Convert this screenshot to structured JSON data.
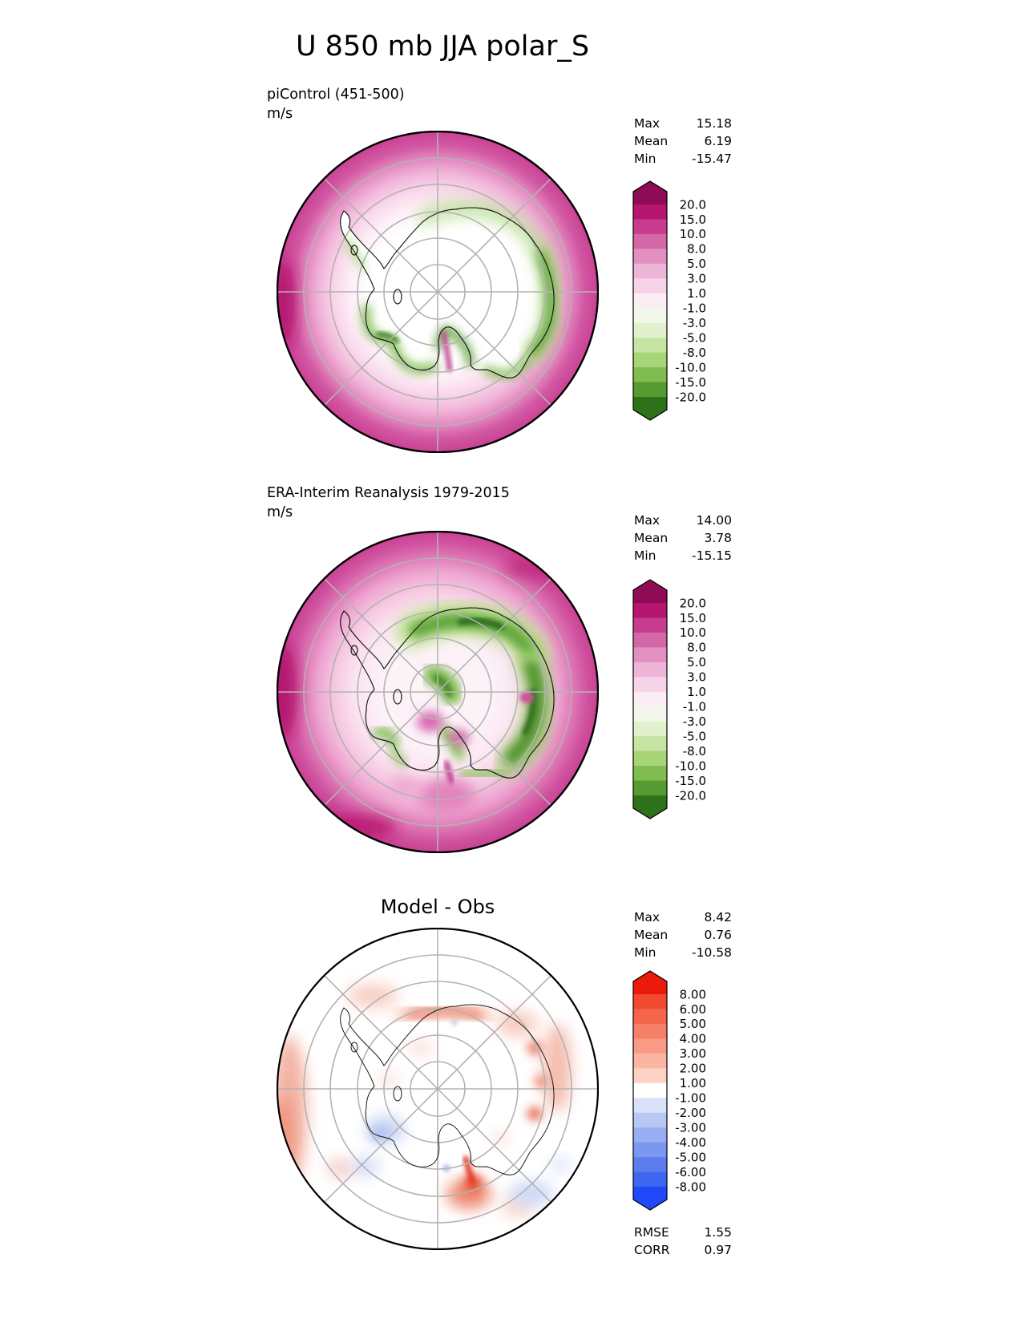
{
  "page_title": "U 850 mb JJA polar_S",
  "panels": [
    {
      "id": "model",
      "label": "piControl (451-500)",
      "units": "m/s",
      "stats": [
        {
          "label": "Max",
          "value": "15.18"
        },
        {
          "label": "Mean",
          "value": "6.19"
        },
        {
          "label": "Min",
          "value": "-15.47"
        }
      ],
      "colorbar": {
        "ticks": [
          "20.0",
          "15.0",
          "10.0",
          "8.0",
          "5.0",
          "3.0",
          "1.0",
          "-1.0",
          "-3.0",
          "-5.0",
          "-8.0",
          "-10.0",
          "-15.0",
          "-20.0"
        ],
        "colors": [
          "#8e0c56",
          "#b51670",
          "#c73c8c",
          "#d467a5",
          "#e190bf",
          "#edb5d6",
          "#f6d3e7",
          "#faeef4",
          "#f3f7eb",
          "#e2f1cd",
          "#c6e5a2",
          "#a6d578",
          "#7fbd50",
          "#569b31",
          "#2d7119"
        ]
      }
    },
    {
      "id": "obs",
      "label": "ERA-Interim Reanalysis 1979-2015",
      "units": "m/s",
      "stats": [
        {
          "label": "Max",
          "value": "14.00"
        },
        {
          "label": "Mean",
          "value": "3.78"
        },
        {
          "label": "Min",
          "value": "-15.15"
        }
      ],
      "colorbar": {
        "ticks": [
          "20.0",
          "15.0",
          "10.0",
          "8.0",
          "5.0",
          "3.0",
          "1.0",
          "-1.0",
          "-3.0",
          "-5.0",
          "-8.0",
          "-10.0",
          "-15.0",
          "-20.0"
        ],
        "colors": [
          "#8e0c56",
          "#b51670",
          "#c73c8c",
          "#d467a5",
          "#e190bf",
          "#edb5d6",
          "#f6d3e7",
          "#faeef4",
          "#f3f7eb",
          "#e2f1cd",
          "#c6e5a2",
          "#a6d578",
          "#7fbd50",
          "#569b31",
          "#2d7119"
        ]
      }
    },
    {
      "id": "diff",
      "title": "Model - Obs",
      "stats": [
        {
          "label": "Max",
          "value": "8.42"
        },
        {
          "label": "Mean",
          "value": "0.76"
        },
        {
          "label": "Min",
          "value": "-10.58"
        }
      ],
      "colorbar": {
        "ticks": [
          "8.00",
          "6.00",
          "5.00",
          "4.00",
          "3.00",
          "2.00",
          "1.00",
          "-1.00",
          "-2.00",
          "-3.00",
          "-4.00",
          "-5.00",
          "-6.00",
          "-8.00"
        ],
        "colors": [
          "#eb1a0b",
          "#f14a31",
          "#f4654c",
          "#f67f68",
          "#f99a85",
          "#fbb5a3",
          "#fdd2c4",
          "#ffffff",
          "#dae2f9",
          "#b9c7f5",
          "#98adf2",
          "#7b97ef",
          "#5d7dec",
          "#3f66f0",
          "#2149fb"
        ]
      },
      "metrics": [
        {
          "label": "RMSE",
          "value": "1.55"
        },
        {
          "label": "CORR",
          "value": "0.97"
        }
      ]
    }
  ],
  "chart_data": [
    {
      "type": "heatmap",
      "title": "piControl (451-500)",
      "suptitle": "U 850 mb JJA polar_S",
      "variable": "U 850 mb",
      "season": "JJA",
      "region": "polar_S",
      "projection": "south-polar-stereographic",
      "units": "m/s",
      "stats": {
        "max": 15.18,
        "mean": 6.19,
        "min": -15.47
      },
      "contour_levels": [
        -20,
        -15,
        -10,
        -8,
        -5,
        -3,
        -1,
        1,
        3,
        5,
        8,
        10,
        15,
        20
      ],
      "colormap": "PiYG_r",
      "legend_position": "right"
    },
    {
      "type": "heatmap",
      "title": "ERA-Interim Reanalysis 1979-2015",
      "variable": "U 850 mb",
      "season": "JJA",
      "region": "polar_S",
      "projection": "south-polar-stereographic",
      "units": "m/s",
      "stats": {
        "max": 14.0,
        "mean": 3.78,
        "min": -15.15
      },
      "contour_levels": [
        -20,
        -15,
        -10,
        -8,
        -5,
        -3,
        -1,
        1,
        3,
        5,
        8,
        10,
        15,
        20
      ],
      "colormap": "PiYG_r",
      "legend_position": "right"
    },
    {
      "type": "heatmap",
      "title": "Model - Obs",
      "variable": "U 850 mb difference",
      "season": "JJA",
      "region": "polar_S",
      "projection": "south-polar-stereographic",
      "units": "m/s",
      "stats": {
        "max": 8.42,
        "mean": 0.76,
        "min": -10.58
      },
      "metrics": {
        "rmse": 1.55,
        "corr": 0.97
      },
      "contour_levels": [
        -8,
        -6,
        -5,
        -4,
        -3,
        -2,
        -1,
        1,
        2,
        3,
        4,
        5,
        6,
        8
      ],
      "colormap": "bwr",
      "legend_position": "right"
    }
  ]
}
